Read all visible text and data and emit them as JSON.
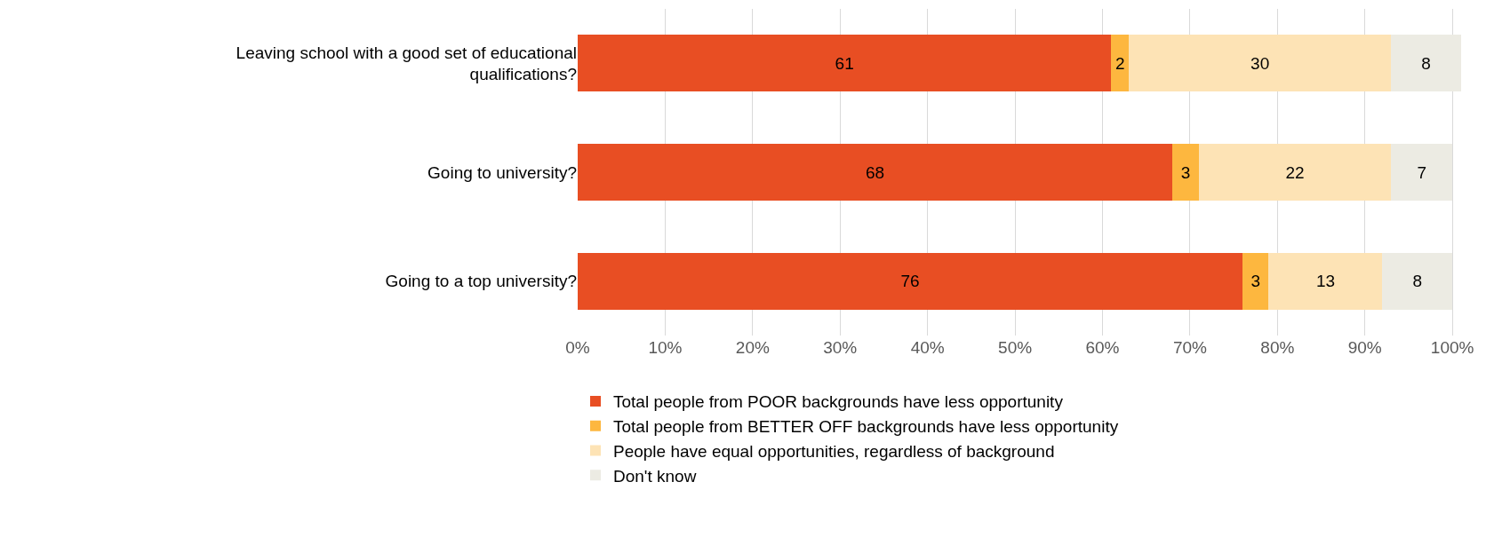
{
  "chart_data": {
    "type": "bar",
    "orientation": "horizontal",
    "stacked": true,
    "data_labels": true,
    "categories": [
      "Leaving school with a good set of educational qualifications?",
      "Going to university?",
      "Going to a top university?"
    ],
    "series": [
      {
        "name": "Total people from POOR backgrounds have less opportunity",
        "color": "#e84e23",
        "values": [
          61,
          68,
          76
        ]
      },
      {
        "name": "Total people from BETTER OFF backgrounds have less opportunity",
        "color": "#fdb73f",
        "values": [
          2,
          3,
          3
        ]
      },
      {
        "name": "People have equal opportunities, regardless of background",
        "color": "#fde3b5",
        "values": [
          30,
          22,
          13
        ]
      },
      {
        "name": "Don't know",
        "color": "#ecebe3",
        "values": [
          8,
          7,
          8
        ]
      }
    ],
    "xlim": [
      0,
      101
    ],
    "xticks": [
      {
        "value": 0,
        "label": "0%"
      },
      {
        "value": 10,
        "label": "10%"
      },
      {
        "value": 20,
        "label": "20%"
      },
      {
        "value": 30,
        "label": "30%"
      },
      {
        "value": 40,
        "label": "40%"
      },
      {
        "value": 50,
        "label": "50%"
      },
      {
        "value": 60,
        "label": "60%"
      },
      {
        "value": 70,
        "label": "70%"
      },
      {
        "value": 80,
        "label": "80%"
      },
      {
        "value": 90,
        "label": "90%"
      },
      {
        "value": 100,
        "label": "100%"
      }
    ],
    "grid": "x",
    "legend": "bottom"
  }
}
